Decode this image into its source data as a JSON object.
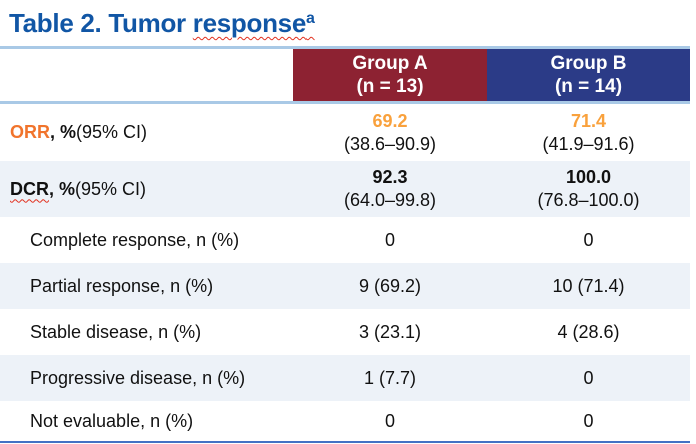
{
  "title": {
    "prefix": "Table 2. Tumor ",
    "misspelled_word": "response",
    "superscript": "a"
  },
  "colors": {
    "title_blue": "#1156A5",
    "group_a_header_bg": "#8D2232",
    "group_b_header_bg": "#2B3B87",
    "alt_row_bg": "#EDF2F8",
    "top_divider": "#A9C9E6",
    "bottom_rule": "#4472C4",
    "orr_label_orange": "#F1742C",
    "orr_value_orange": "#F9A13C",
    "spellcheck_red": "#E2301E"
  },
  "header": {
    "group_a": {
      "name": "Group A",
      "n": "(n = 13)"
    },
    "group_b": {
      "name": "Group B",
      "n": "(n = 14)"
    }
  },
  "rows": [
    {
      "label_strong": "ORR",
      "label_bold": ", %",
      "label_note": " (95% CI)",
      "a_value": "69.2",
      "a_ci": "(38.6–90.9)",
      "b_value": "71.4",
      "b_ci": "(41.9–91.6)"
    },
    {
      "label_strong": "DCR",
      "label_bold": ", %",
      "label_note": " (95% CI)",
      "a_value": "92.3",
      "a_ci": "(64.0–99.8)",
      "b_value": "100.0",
      "b_ci": "(76.8–100.0)"
    },
    {
      "label": "Complete response, n (%)",
      "a_value": "0",
      "b_value": "0"
    },
    {
      "label": "Partial response, n (%)",
      "a_value": "9 (69.2)",
      "b_value": "10 (71.4)"
    },
    {
      "label": "Stable disease, n (%)",
      "a_value": "3 (23.1)",
      "b_value": "4 (28.6)"
    },
    {
      "label": "Progressive disease, n (%)",
      "a_value": "1 (7.7)",
      "b_value": "0"
    },
    {
      "label": "Not evaluable, n (%)",
      "a_value": "0",
      "b_value": "0"
    }
  ]
}
